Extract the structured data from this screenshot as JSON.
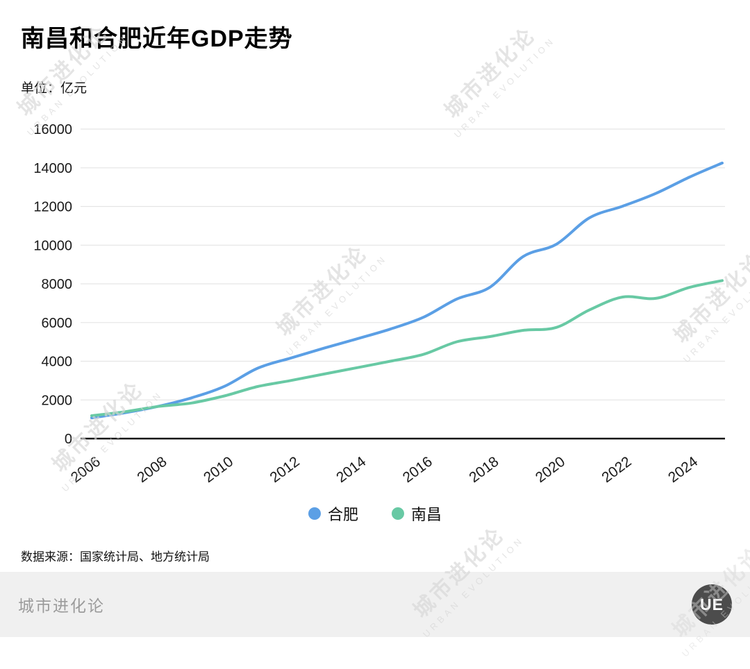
{
  "page": {
    "title": "南昌和合肥近年GDP走势",
    "unit_label": "单位：亿元",
    "source": "数据来源：国家统计局、地方统计局",
    "footer_brand": "城市进化论",
    "logo_text": "UE"
  },
  "watermark": {
    "line1": "城市进化论",
    "line2": "URBAN EVOLUTION"
  },
  "chart_data": {
    "type": "line",
    "title": "南昌和合肥近年GDP走势",
    "ylabel": "亿元",
    "xlabel": "",
    "grid": true,
    "legend_position": "bottom",
    "ylim": [
      0,
      16000
    ],
    "y_ticks": [
      0,
      2000,
      4000,
      6000,
      8000,
      10000,
      12000,
      14000,
      16000
    ],
    "x_ticks": [
      2006,
      2008,
      2010,
      2012,
      2014,
      2016,
      2018,
      2020,
      2022,
      2024
    ],
    "x": [
      2006,
      2007,
      2008,
      2009,
      2010,
      2011,
      2012,
      2013,
      2014,
      2015,
      2016,
      2017,
      2018,
      2019,
      2020,
      2021,
      2022,
      2023,
      2024,
      2025
    ],
    "series": [
      {
        "name": "合肥",
        "color": "#5B9FE5",
        "values": [
          1074,
          1334,
          1665,
          2102,
          2702,
          3637,
          4164,
          4673,
          5158,
          5660,
          6274,
          7213,
          7823,
          9409,
          10046,
          11413,
          12013,
          12674,
          13508,
          14247
        ]
      },
      {
        "name": "南昌",
        "color": "#68C9A4",
        "values": [
          1185,
          1390,
          1660,
          1838,
          2207,
          2689,
          3001,
          3336,
          3668,
          4000,
          4355,
          5003,
          5275,
          5596,
          5746,
          6651,
          7320,
          7250,
          7810,
          8170
        ]
      }
    ]
  }
}
